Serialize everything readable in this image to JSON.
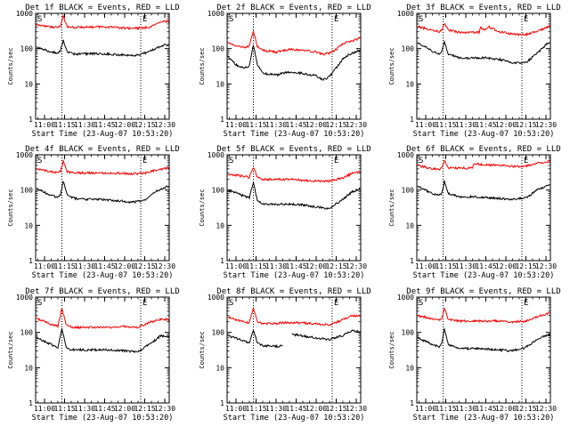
{
  "figure": {
    "background": "#ffffff",
    "axis_color": "#000000"
  },
  "chart_data": [
    {
      "type": "line",
      "title": "Det 1f BLACK = Events, RED = LLD",
      "ylabel": "Counts/sec",
      "xlabel": "Start Time (23-Aug-07 10:53:20)",
      "yscale": "log",
      "ylim": [
        1,
        1000
      ],
      "y_tick_labels": [
        "1",
        "10",
        "100",
        "1000"
      ],
      "xlim": [
        "10:53:20",
        "12:33:20"
      ],
      "x_tick_labels": [
        "11:00",
        "11:15",
        "11:30",
        "11:45",
        "12:00",
        "12:15",
        "12:30"
      ],
      "flag_labels": [
        "S",
        "E"
      ],
      "markers": [
        "11:13",
        "12:12"
      ],
      "grid": false,
      "series": [
        {
          "color": "#ff0000",
          "x": [
            "10:54",
            "11:05",
            "11:10",
            "11:12",
            "11:14",
            "11:17",
            "11:22",
            "11:30",
            "11:40",
            "11:50",
            "12:00",
            "12:10",
            "12:18",
            "12:25",
            "12:30",
            "12:33"
          ],
          "y": [
            480,
            410,
            400,
            430,
            850,
            420,
            400,
            410,
            410,
            410,
            380,
            380,
            400,
            520,
            600,
            570
          ]
        },
        {
          "color": "#000000",
          "x": [
            "10:54",
            "11:05",
            "11:10",
            "11:12",
            "11:14",
            "11:17",
            "11:22",
            "11:30",
            "11:40",
            "11:50",
            "12:00",
            "12:10",
            "12:18",
            "12:25",
            "12:30",
            "12:33"
          ],
          "y": [
            110,
            80,
            75,
            90,
            170,
            80,
            70,
            72,
            72,
            70,
            65,
            65,
            80,
            110,
            130,
            125
          ]
        }
      ]
    },
    {
      "type": "line",
      "title": "Det 2f BLACK = Events, RED = LLD",
      "ylabel": "Counts/sec",
      "xlabel": "Start Time (23-Aug-07 10:53:20)",
      "yscale": "log",
      "ylim": [
        1,
        1000
      ],
      "y_tick_labels": [
        "1",
        "10",
        "100",
        "1000"
      ],
      "xlim": [
        "10:53:20",
        "12:33:20"
      ],
      "x_tick_labels": [
        "11:00",
        "11:15",
        "11:30",
        "11:45",
        "12:00",
        "12:15",
        "12:30"
      ],
      "flag_labels": [
        "S",
        "E"
      ],
      "markers": [
        "11:13",
        "12:12"
      ],
      "grid": false,
      "series": [
        {
          "color": "#ff0000",
          "x": [
            "10:54",
            "11:00",
            "11:06",
            "11:10",
            "11:13",
            "11:16",
            "11:20",
            "11:30",
            "11:40",
            "11:50",
            "12:00",
            "12:05",
            "12:10",
            "12:15",
            "12:20",
            "12:25",
            "12:33"
          ],
          "y": [
            150,
            120,
            110,
            115,
            320,
            115,
            90,
            80,
            95,
            90,
            80,
            70,
            75,
            95,
            140,
            160,
            200
          ]
        },
        {
          "color": "#000000",
          "x": [
            "10:54",
            "11:00",
            "11:06",
            "11:10",
            "11:13",
            "11:16",
            "11:20",
            "11:30",
            "11:40",
            "11:50",
            "12:00",
            "12:05",
            "12:10",
            "12:15",
            "12:20",
            "12:25",
            "12:33"
          ],
          "y": [
            60,
            35,
            28,
            32,
            130,
            35,
            20,
            18,
            22,
            20,
            17,
            13,
            16,
            28,
            50,
            70,
            90
          ]
        }
      ]
    },
    {
      "type": "line",
      "title": "Det 3f BLACK = Events, RED = LLD",
      "ylabel": "Counts/sec",
      "xlabel": "Start Time (23-Aug-07 10:53:20)",
      "yscale": "log",
      "ylim": [
        1,
        1000
      ],
      "y_tick_labels": [
        "1",
        "10",
        "100",
        "1000"
      ],
      "xlim": [
        "10:53:20",
        "12:33:20"
      ],
      "x_tick_labels": [
        "11:00",
        "11:15",
        "11:30",
        "11:45",
        "12:00",
        "12:15",
        "12:30"
      ],
      "flag_labels": [
        "S",
        "E"
      ],
      "markers": [
        "11:13",
        "12:12"
      ],
      "grid": false,
      "series": [
        {
          "color": "#ff0000",
          "x": [
            "10:54",
            "11:05",
            "11:10",
            "11:12",
            "11:14",
            "11:17",
            "11:25",
            "11:35",
            "11:40",
            "11:41",
            "11:44",
            "11:47",
            "11:55",
            "12:05",
            "12:15",
            "12:25",
            "12:30",
            "12:33"
          ],
          "y": [
            420,
            330,
            300,
            330,
            520,
            330,
            290,
            290,
            290,
            400,
            340,
            420,
            300,
            260,
            250,
            330,
            400,
            420
          ]
        },
        {
          "color": "#000000",
          "x": [
            "10:54",
            "11:05",
            "11:10",
            "11:12",
            "11:14",
            "11:17",
            "11:25",
            "11:35",
            "11:45",
            "11:55",
            "12:05",
            "12:15",
            "12:25",
            "12:30",
            "12:33"
          ],
          "y": [
            150,
            85,
            70,
            80,
            160,
            70,
            55,
            55,
            55,
            50,
            40,
            40,
            85,
            130,
            150
          ]
        }
      ]
    },
    {
      "type": "line",
      "title": "Det 4f BLACK = Events, RED = LLD",
      "ylabel": "Counts/sec",
      "xlabel": "Start Time (23-Aug-07 10:53:20)",
      "yscale": "log",
      "ylim": [
        1,
        1000
      ],
      "y_tick_labels": [
        "1",
        "10",
        "100",
        "1000"
      ],
      "xlim": [
        "10:53:20",
        "12:33:20"
      ],
      "x_tick_labels": [
        "11:00",
        "11:15",
        "11:30",
        "11:45",
        "12:00",
        "12:15",
        "12:30"
      ],
      "flag_labels": [
        "S",
        "E"
      ],
      "markers": [
        "11:13",
        "12:12"
      ],
      "grid": false,
      "series": [
        {
          "color": "#ff0000",
          "x": [
            "10:54",
            "11:05",
            "11:10",
            "11:12",
            "11:14",
            "11:17",
            "11:25",
            "11:40",
            "11:55",
            "12:05",
            "12:15",
            "12:25",
            "12:33"
          ],
          "y": [
            400,
            330,
            310,
            340,
            650,
            330,
            310,
            300,
            300,
            290,
            300,
            380,
            430
          ]
        },
        {
          "color": "#000000",
          "x": [
            "10:54",
            "11:05",
            "11:10",
            "11:12",
            "11:14",
            "11:17",
            "11:25",
            "11:40",
            "11:55",
            "12:05",
            "12:15",
            "12:25",
            "12:33"
          ],
          "y": [
            110,
            70,
            62,
            75,
            180,
            70,
            55,
            55,
            50,
            45,
            50,
            100,
            130
          ]
        }
      ]
    },
    {
      "type": "line",
      "title": "Det 5f BLACK = Events, RED = LLD",
      "ylabel": "Counts/sec",
      "xlabel": "Start Time (23-Aug-07 10:53:20)",
      "yscale": "log",
      "ylim": [
        1,
        1000
      ],
      "y_tick_labels": [
        "1",
        "10",
        "100",
        "1000"
      ],
      "xlim": [
        "10:53:20",
        "12:33:20"
      ],
      "x_tick_labels": [
        "11:00",
        "11:15",
        "11:30",
        "11:45",
        "12:00",
        "12:15",
        "12:30"
      ],
      "flag_labels": [
        "S",
        "E"
      ],
      "markers": [
        "11:13",
        "12:12"
      ],
      "grid": false,
      "series": [
        {
          "color": "#ff0000",
          "x": [
            "10:54",
            "11:05",
            "11:10",
            "11:13",
            "11:16",
            "11:20",
            "11:30",
            "11:40",
            "11:50",
            "12:00",
            "12:10",
            "12:20",
            "12:27",
            "12:33"
          ],
          "y": [
            280,
            250,
            230,
            450,
            230,
            200,
            200,
            200,
            190,
            180,
            180,
            220,
            300,
            330
          ]
        },
        {
          "color": "#000000",
          "x": [
            "10:54",
            "11:05",
            "11:10",
            "11:13",
            "11:16",
            "11:20",
            "11:30",
            "11:40",
            "11:50",
            "12:00",
            "12:10",
            "12:20",
            "12:27",
            "12:33"
          ],
          "y": [
            100,
            70,
            60,
            160,
            50,
            40,
            40,
            40,
            38,
            33,
            30,
            55,
            90,
            110
          ]
        }
      ]
    },
    {
      "type": "line",
      "title": "Det 6f BLACK = Events, RED = LLD",
      "ylabel": "Counts/sec",
      "xlabel": "Start Time (23-Aug-07 10:53:20)",
      "yscale": "log",
      "ylim": [
        1,
        1000
      ],
      "y_tick_labels": [
        "1",
        "10",
        "100",
        "1000"
      ],
      "xlim": [
        "10:53:20",
        "12:33:20"
      ],
      "x_tick_labels": [
        "11:00",
        "11:15",
        "11:30",
        "11:45",
        "12:00",
        "12:15",
        "12:30"
      ],
      "flag_labels": [
        "S",
        "E"
      ],
      "markers": [
        "11:13",
        "12:12"
      ],
      "grid": false,
      "series": [
        {
          "color": "#ff0000",
          "x": [
            "10:54",
            "11:05",
            "11:10",
            "11:12",
            "11:14",
            "11:17",
            "11:25",
            "11:35",
            "11:36",
            "11:45",
            "11:55",
            "12:05",
            "12:15",
            "12:25",
            "12:33"
          ],
          "y": [
            500,
            400,
            380,
            420,
            700,
            420,
            420,
            420,
            560,
            520,
            500,
            470,
            480,
            600,
            650
          ]
        },
        {
          "color": "#000000",
          "x": [
            "10:54",
            "11:05",
            "11:10",
            "11:12",
            "11:14",
            "11:17",
            "11:25",
            "11:35",
            "11:45",
            "11:55",
            "12:05",
            "12:15",
            "12:25",
            "12:33"
          ],
          "y": [
            130,
            80,
            70,
            80,
            180,
            80,
            65,
            65,
            62,
            58,
            55,
            60,
            110,
            140
          ]
        }
      ]
    },
    {
      "type": "line",
      "title": "Det 7f BLACK = Events, RED = LLD",
      "ylabel": "Counts/sec",
      "xlabel": "Start Time (23-Aug-07 10:53:20)",
      "yscale": "log",
      "ylim": [
        1,
        1000
      ],
      "y_tick_labels": [
        "1",
        "10",
        "100",
        "1000"
      ],
      "xlim": [
        "10:53:20",
        "12:33:20"
      ],
      "x_tick_labels": [
        "11:00",
        "11:15",
        "11:30",
        "11:45",
        "12:00",
        "12:15",
        "12:30"
      ],
      "flag_labels": [
        "S",
        "E"
      ],
      "markers": [
        "11:13",
        "12:12"
      ],
      "grid": false,
      "series": [
        {
          "color": "#ff0000",
          "x": [
            "10:54",
            "11:05",
            "11:10",
            "11:13",
            "11:16",
            "11:20",
            "11:30",
            "11:40",
            "11:50",
            "12:00",
            "12:10",
            "12:20",
            "12:27",
            "12:33"
          ],
          "y": [
            250,
            170,
            150,
            480,
            180,
            140,
            140,
            140,
            140,
            150,
            140,
            200,
            240,
            230
          ]
        },
        {
          "color": "#000000",
          "x": [
            "10:54",
            "11:05",
            "11:10",
            "11:13",
            "11:16",
            "11:20",
            "11:30",
            "11:40",
            "11:50",
            "12:00",
            "12:10",
            "12:20",
            "12:27",
            "12:33"
          ],
          "y": [
            70,
            45,
            38,
            130,
            40,
            32,
            32,
            32,
            32,
            30,
            28,
            50,
            80,
            75
          ]
        }
      ]
    },
    {
      "type": "line",
      "title": "Det 8f BLACK = Events, RED = LLD",
      "ylabel": "Counts/sec",
      "xlabel": "Start Time (23-Aug-07 10:53:20)",
      "yscale": "log",
      "ylim": [
        1,
        1000
      ],
      "y_tick_labels": [
        "1",
        "10",
        "100",
        "1000"
      ],
      "xlim": [
        "10:53:20",
        "12:33:20"
      ],
      "x_tick_labels": [
        "11:00",
        "11:15",
        "11:30",
        "11:45",
        "12:00",
        "12:15",
        "12:30"
      ],
      "flag_labels": [
        "S",
        "E"
      ],
      "markers": [
        "11:13",
        "12:12"
      ],
      "grid": false,
      "series": [
        {
          "color": "#ff0000",
          "x": [
            "10:54",
            "11:05",
            "11:10",
            "11:13",
            "11:16",
            "11:20",
            "11:30",
            "11:40",
            "11:50",
            "12:00",
            "12:10",
            "12:20",
            "12:27",
            "12:33"
          ],
          "y": [
            270,
            200,
            190,
            480,
            200,
            180,
            180,
            190,
            185,
            175,
            165,
            230,
            300,
            290
          ]
        },
        {
          "color": "#000000",
          "x": [
            "10:54",
            "11:05",
            "11:10",
            "11:13",
            "11:16",
            "11:20",
            "11:30",
            "11:35"
          ],
          "y": [
            80,
            60,
            50,
            120,
            50,
            42,
            40,
            42
          ]
        },
        {
          "color": "#000000",
          "x": [
            "11:42",
            "11:50",
            "12:00",
            "12:10",
            "12:20",
            "12:27",
            "12:33"
          ],
          "y": [
            88,
            80,
            70,
            62,
            82,
            110,
            105
          ]
        }
      ]
    },
    {
      "type": "line",
      "title": "Det 9f BLACK = Events, RED = LLD",
      "ylabel": "Counts/sec",
      "xlabel": "Start Time (23-Aug-07 10:53:20)",
      "yscale": "log",
      "ylim": [
        1,
        1000
      ],
      "y_tick_labels": [
        "1",
        "10",
        "100",
        "1000"
      ],
      "xlim": [
        "10:53:20",
        "12:33:20"
      ],
      "x_tick_labels": [
        "11:00",
        "11:15",
        "11:30",
        "11:45",
        "12:00",
        "12:15",
        "12:30"
      ],
      "flag_labels": [
        "S",
        "E"
      ],
      "markers": [
        "11:13",
        "12:12"
      ],
      "grid": false,
      "series": [
        {
          "color": "#ff0000",
          "x": [
            "10:54",
            "11:05",
            "11:10",
            "11:12",
            "11:14",
            "11:17",
            "11:25",
            "11:40",
            "11:55",
            "12:05",
            "12:15",
            "12:25",
            "12:33"
          ],
          "y": [
            300,
            240,
            220,
            250,
            480,
            230,
            210,
            210,
            210,
            200,
            210,
            300,
            350
          ]
        },
        {
          "color": "#000000",
          "x": [
            "10:54",
            "11:05",
            "11:10",
            "11:12",
            "11:14",
            "11:17",
            "11:25",
            "11:40",
            "11:55",
            "12:05",
            "12:15",
            "12:25",
            "12:33"
          ],
          "y": [
            70,
            45,
            40,
            48,
            130,
            45,
            35,
            35,
            32,
            30,
            38,
            70,
            90
          ]
        }
      ]
    }
  ]
}
